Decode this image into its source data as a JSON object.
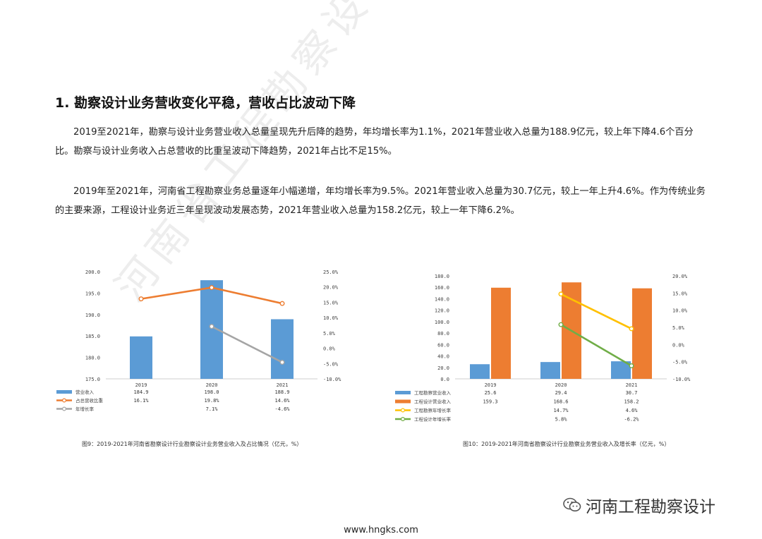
{
  "document": {
    "heading": "1. 勘察设计业务营收变化平稳，营收占比波动下降",
    "paragraph1": "2019至2021年，勘察与设计业务营业收入总量呈现先升后降的趋势，年均增长率为1.1%，2021年营业收入总量为188.9亿元，较上年下降4.6个百分比。勘察与设计业务收入占总营收的比重呈波动下降趋势，2021年占比不足15%。",
    "paragraph2": "2019年至2021年，河南省工程勘察业务总量逐年小幅递增，年均增长率为9.5%。2021年营业收入总量为30.7亿元，较上一年上升4.6%。作为传统业务的主要来源，工程设计业务近三年呈现波动发展态势，2021年营业收入总量为158.2亿元，较上一年下降6.2%。",
    "watermark": "河南省工程勘察设计行业协会",
    "brand": "河南工程勘察设计",
    "website": "www.hngks.com"
  },
  "colors": {
    "blue": "#5B9BD5",
    "orange": "#ED7D31",
    "gray": "#A5A5A5",
    "yellow": "#FFC000",
    "green": "#70AD47"
  },
  "chart_data": [
    {
      "type": "bar",
      "caption": "图9：2019-2021年河南省勘察设计行业勘察设计业务营业收入及占比情况（亿元，%）",
      "categories": [
        "2019",
        "2020",
        "2021"
      ],
      "y_left_ticks": [
        "200.0",
        "195.0",
        "190.0",
        "185.0",
        "180.0",
        "175.0"
      ],
      "y_right_ticks": [
        "25.0%",
        "20.0%",
        "15.0%",
        "10.0%",
        "5.0%",
        "0.0%",
        "-5.0%",
        "-10.0%"
      ],
      "ylim_left": [
        175,
        200
      ],
      "ylim_right": [
        -10,
        25
      ],
      "series": [
        {
          "name": "营业收入",
          "kind": "bar",
          "axis": "left",
          "color": "#5B9BD5",
          "values": [
            184.9,
            198.0,
            188.9
          ],
          "labels": [
            "184.9",
            "198.0",
            "188.9"
          ]
        },
        {
          "name": "占总营收比重",
          "kind": "line",
          "axis": "right",
          "color": "#ED7D31",
          "values": [
            16.1,
            19.8,
            14.6
          ],
          "labels": [
            "16.1%",
            "19.8%",
            "14.6%"
          ]
        },
        {
          "name": "年增长率",
          "kind": "line",
          "axis": "right",
          "color": "#A5A5A5",
          "values": [
            null,
            7.1,
            -4.6
          ],
          "labels": [
            "",
            "7.1%",
            "-4.6%"
          ]
        }
      ]
    },
    {
      "type": "bar",
      "caption": "图10：2019-2021年河南省勘察设计行业勘察业务营业收入及增长率（亿元，%）",
      "categories": [
        "2019",
        "2020",
        "2021"
      ],
      "y_left_ticks": [
        "180.0",
        "160.0",
        "140.0",
        "120.0",
        "100.0",
        "80.0",
        "60.0",
        "40.0",
        "20.0",
        "0.0"
      ],
      "y_right_ticks": [
        "20.0%",
        "15.0%",
        "10.0%",
        "5.0%",
        "0.0%",
        "-5.0%",
        "-10.0%"
      ],
      "ylim_left": [
        0,
        180
      ],
      "ylim_right": [
        -10,
        20
      ],
      "series": [
        {
          "name": "工程勘察营业收入",
          "kind": "bar",
          "axis": "left",
          "color": "#5B9BD5",
          "values": [
            25.6,
            29.4,
            30.7
          ],
          "labels": [
            "25.6",
            "29.4",
            "30.7"
          ]
        },
        {
          "name": "工程设计营业收入",
          "kind": "bar",
          "axis": "left",
          "color": "#ED7D31",
          "values": [
            159.3,
            168.6,
            158.2
          ],
          "labels": [
            "159.3",
            "168.6",
            "158.2"
          ]
        },
        {
          "name": "工程勘察年增长率",
          "kind": "line",
          "axis": "right",
          "color": "#FFC000",
          "values": [
            null,
            14.7,
            4.6
          ],
          "labels": [
            "",
            "14.7%",
            "4.6%"
          ]
        },
        {
          "name": "工程设计年增长率",
          "kind": "line",
          "axis": "right",
          "color": "#70AD47",
          "values": [
            null,
            5.8,
            -6.2
          ],
          "labels": [
            "",
            "5.8%",
            "-6.2%"
          ]
        }
      ]
    }
  ]
}
